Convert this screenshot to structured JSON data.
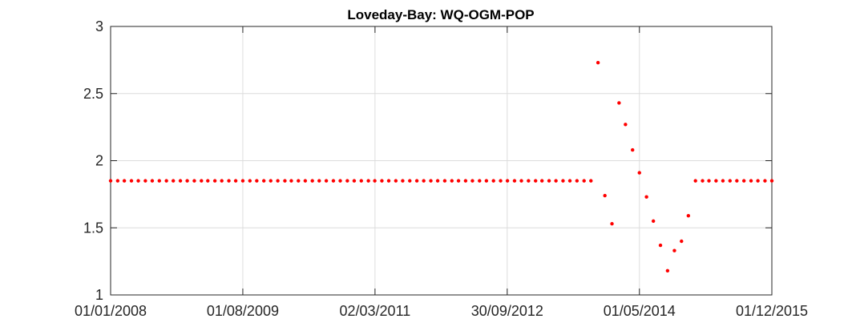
{
  "chart_data": {
    "type": "scatter",
    "title": "Loveday-Bay: WQ-OGM-POP",
    "xlabel": "",
    "ylabel": "",
    "x_is_date": true,
    "xlim": [
      "2008-01-01",
      "2015-12-01"
    ],
    "ylim": [
      1,
      3
    ],
    "x_ticks": [
      {
        "date": "2008-01-01",
        "label": "01/01/2008"
      },
      {
        "date": "2009-08-01",
        "label": "01/08/2009"
      },
      {
        "date": "2011-03-02",
        "label": "02/03/2011"
      },
      {
        "date": "2012-09-30",
        "label": "30/09/2012"
      },
      {
        "date": "2014-05-01",
        "label": "01/05/2014"
      },
      {
        "date": "2015-12-01",
        "label": "01/12/2015"
      }
    ],
    "y_ticks": [
      {
        "value": 1,
        "label": "1"
      },
      {
        "value": 1.5,
        "label": "1.5"
      },
      {
        "value": 2,
        "label": "2"
      },
      {
        "value": 2.5,
        "label": "2.5"
      },
      {
        "value": 3,
        "label": "3"
      }
    ],
    "grid": true,
    "marker_color": "#ff0000",
    "series": [
      {
        "points": [
          {
            "x": "2008-01-01",
            "y": 1.85
          },
          {
            "x": "2008-02-01",
            "y": 1.85
          },
          {
            "x": "2008-03-01",
            "y": 1.85
          },
          {
            "x": "2008-04-01",
            "y": 1.85
          },
          {
            "x": "2008-05-01",
            "y": 1.85
          },
          {
            "x": "2008-06-01",
            "y": 1.85
          },
          {
            "x": "2008-07-01",
            "y": 1.85
          },
          {
            "x": "2008-08-01",
            "y": 1.85
          },
          {
            "x": "2008-09-01",
            "y": 1.85
          },
          {
            "x": "2008-10-01",
            "y": 1.85
          },
          {
            "x": "2008-11-01",
            "y": 1.85
          },
          {
            "x": "2008-12-01",
            "y": 1.85
          },
          {
            "x": "2009-01-01",
            "y": 1.85
          },
          {
            "x": "2009-02-01",
            "y": 1.85
          },
          {
            "x": "2009-03-01",
            "y": 1.85
          },
          {
            "x": "2009-04-01",
            "y": 1.85
          },
          {
            "x": "2009-05-01",
            "y": 1.85
          },
          {
            "x": "2009-06-01",
            "y": 1.85
          },
          {
            "x": "2009-07-01",
            "y": 1.85
          },
          {
            "x": "2009-08-01",
            "y": 1.85
          },
          {
            "x": "2009-09-01",
            "y": 1.85
          },
          {
            "x": "2009-10-01",
            "y": 1.85
          },
          {
            "x": "2009-11-01",
            "y": 1.85
          },
          {
            "x": "2009-12-01",
            "y": 1.85
          },
          {
            "x": "2010-01-01",
            "y": 1.85
          },
          {
            "x": "2010-02-01",
            "y": 1.85
          },
          {
            "x": "2010-03-01",
            "y": 1.85
          },
          {
            "x": "2010-04-01",
            "y": 1.85
          },
          {
            "x": "2010-05-01",
            "y": 1.85
          },
          {
            "x": "2010-06-01",
            "y": 1.85
          },
          {
            "x": "2010-07-01",
            "y": 1.85
          },
          {
            "x": "2010-08-01",
            "y": 1.85
          },
          {
            "x": "2010-09-01",
            "y": 1.85
          },
          {
            "x": "2010-10-01",
            "y": 1.85
          },
          {
            "x": "2010-11-01",
            "y": 1.85
          },
          {
            "x": "2010-12-01",
            "y": 1.85
          },
          {
            "x": "2011-01-01",
            "y": 1.85
          },
          {
            "x": "2011-02-01",
            "y": 1.85
          },
          {
            "x": "2011-03-01",
            "y": 1.85
          },
          {
            "x": "2011-04-01",
            "y": 1.85
          },
          {
            "x": "2011-05-01",
            "y": 1.85
          },
          {
            "x": "2011-06-01",
            "y": 1.85
          },
          {
            "x": "2011-07-01",
            "y": 1.85
          },
          {
            "x": "2011-08-01",
            "y": 1.85
          },
          {
            "x": "2011-09-01",
            "y": 1.85
          },
          {
            "x": "2011-10-01",
            "y": 1.85
          },
          {
            "x": "2011-11-01",
            "y": 1.85
          },
          {
            "x": "2011-12-01",
            "y": 1.85
          },
          {
            "x": "2012-01-01",
            "y": 1.85
          },
          {
            "x": "2012-02-01",
            "y": 1.85
          },
          {
            "x": "2012-03-01",
            "y": 1.85
          },
          {
            "x": "2012-04-01",
            "y": 1.85
          },
          {
            "x": "2012-05-01",
            "y": 1.85
          },
          {
            "x": "2012-06-01",
            "y": 1.85
          },
          {
            "x": "2012-07-01",
            "y": 1.85
          },
          {
            "x": "2012-08-01",
            "y": 1.85
          },
          {
            "x": "2012-09-01",
            "y": 1.85
          },
          {
            "x": "2012-10-01",
            "y": 1.85
          },
          {
            "x": "2012-11-01",
            "y": 1.85
          },
          {
            "x": "2012-12-01",
            "y": 1.85
          },
          {
            "x": "2013-01-01",
            "y": 1.85
          },
          {
            "x": "2013-02-01",
            "y": 1.85
          },
          {
            "x": "2013-03-01",
            "y": 1.85
          },
          {
            "x": "2013-04-01",
            "y": 1.85
          },
          {
            "x": "2013-05-01",
            "y": 1.85
          },
          {
            "x": "2013-06-01",
            "y": 1.85
          },
          {
            "x": "2013-07-01",
            "y": 1.85
          },
          {
            "x": "2013-08-01",
            "y": 1.85
          },
          {
            "x": "2013-09-01",
            "y": 1.85
          },
          {
            "x": "2013-10-01",
            "y": 1.85
          },
          {
            "x": "2013-11-01",
            "y": 2.73
          },
          {
            "x": "2013-12-01",
            "y": 1.74
          },
          {
            "x": "2014-01-01",
            "y": 1.53
          },
          {
            "x": "2014-02-01",
            "y": 2.43
          },
          {
            "x": "2014-03-01",
            "y": 2.27
          },
          {
            "x": "2014-04-01",
            "y": 2.08
          },
          {
            "x": "2014-05-01",
            "y": 1.91
          },
          {
            "x": "2014-06-01",
            "y": 1.73
          },
          {
            "x": "2014-07-01",
            "y": 1.55
          },
          {
            "x": "2014-08-01",
            "y": 1.37
          },
          {
            "x": "2014-09-01",
            "y": 1.18
          },
          {
            "x": "2014-10-01",
            "y": 1.33
          },
          {
            "x": "2014-11-01",
            "y": 1.4
          },
          {
            "x": "2014-12-01",
            "y": 1.59
          },
          {
            "x": "2015-01-01",
            "y": 1.85
          },
          {
            "x": "2015-02-01",
            "y": 1.85
          },
          {
            "x": "2015-03-01",
            "y": 1.85
          },
          {
            "x": "2015-04-01",
            "y": 1.85
          },
          {
            "x": "2015-05-01",
            "y": 1.85
          },
          {
            "x": "2015-06-01",
            "y": 1.85
          },
          {
            "x": "2015-07-01",
            "y": 1.85
          },
          {
            "x": "2015-08-01",
            "y": 1.85
          },
          {
            "x": "2015-09-01",
            "y": 1.85
          },
          {
            "x": "2015-10-01",
            "y": 1.85
          },
          {
            "x": "2015-11-01",
            "y": 1.85
          },
          {
            "x": "2015-12-01",
            "y": 1.85
          }
        ]
      }
    ]
  }
}
